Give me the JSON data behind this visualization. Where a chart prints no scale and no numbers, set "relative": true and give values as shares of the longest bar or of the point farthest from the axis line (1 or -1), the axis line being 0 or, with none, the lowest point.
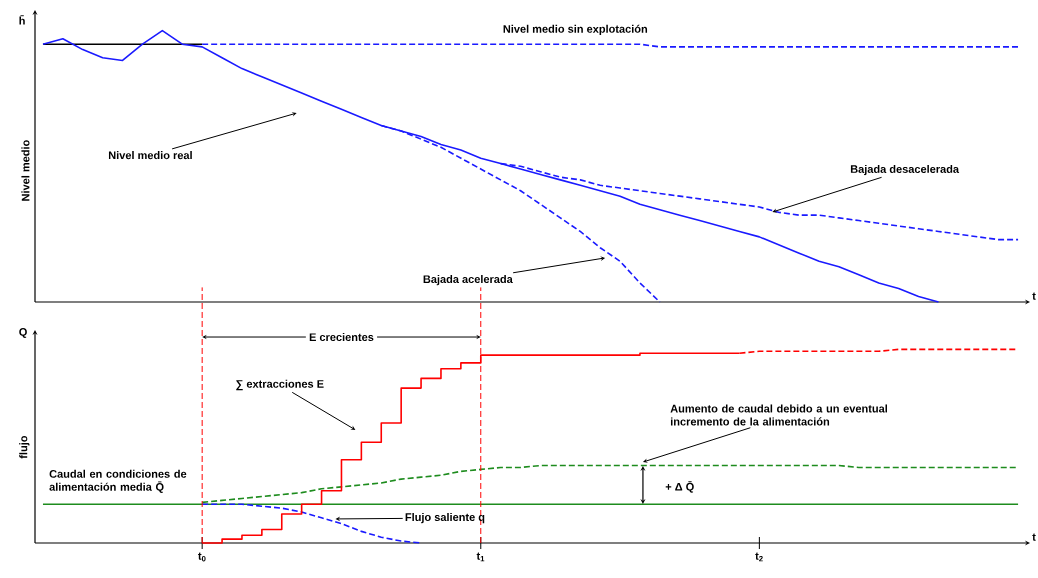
{
  "chart_data": [
    {
      "type": "line",
      "relative": true,
      "xlabel": "t",
      "ylabel": "Nivel medio",
      "categories": [
        null,
        null,
        null,
        null,
        null,
        null,
        null,
        null,
        null,
        null,
        null,
        null,
        null,
        null,
        null,
        null,
        null,
        null,
        null,
        null,
        null,
        null,
        null,
        null,
        null,
        null,
        null,
        null,
        null,
        null,
        null,
        null,
        null,
        null,
        null,
        null,
        null,
        null,
        null,
        null,
        null,
        null,
        null,
        null,
        null,
        null,
        null,
        null,
        null,
        null
      ],
      "series": [
        {
          "color": "#000000",
          "line_style": "solid",
          "values": [
            0.95,
            0.95,
            0.95,
            0.95,
            0.95,
            0.95,
            0.95,
            0.95,
            0.95,
            null,
            null,
            null,
            null,
            null,
            null,
            null,
            null,
            null,
            null,
            null,
            null,
            null,
            null,
            null,
            null,
            null,
            null,
            null,
            null,
            null,
            null,
            null,
            null,
            null,
            null,
            null,
            null,
            null,
            null,
            null,
            null,
            null,
            null,
            null,
            null,
            null,
            null,
            null,
            null,
            null
          ]
        },
        {
          "color": "#1a1aff",
          "line_style": "dashed",
          "values": [
            null,
            null,
            null,
            null,
            null,
            null,
            null,
            null,
            0.95,
            0.95,
            0.95,
            0.95,
            0.95,
            0.95,
            0.95,
            0.95,
            0.95,
            0.95,
            0.95,
            0.95,
            0.95,
            0.95,
            0.95,
            0.95,
            0.95,
            0.95,
            0.95,
            0.95,
            0.95,
            0.95,
            0.95,
            0.94,
            0.94,
            0.94,
            0.94,
            0.94,
            0.94,
            0.94,
            0.94,
            0.94,
            0.94,
            0.94,
            0.94,
            0.94,
            0.94,
            0.94,
            0.94,
            0.94,
            0.94,
            0.94
          ]
        },
        {
          "color": "#1a1aff",
          "line_style": "solid",
          "values": [
            0.95,
            0.97,
            0.93,
            0.9,
            0.89,
            0.95,
            1,
            0.95,
            0.94,
            0.9,
            0.86,
            0.83,
            0.8,
            0.77,
            0.74,
            0.71,
            0.68,
            0.65,
            0.63,
            0.61,
            0.58,
            0.56,
            0.53,
            0.51,
            0.49,
            0.47,
            0.45,
            0.43,
            0.41,
            0.39,
            0.36,
            0.34,
            0.32,
            0.3,
            0.28,
            0.26,
            0.24,
            0.21,
            0.18,
            0.15,
            0.13,
            0.1,
            0.07,
            0.05,
            0.02,
            0,
            null,
            null,
            null,
            null
          ]
        },
        {
          "color": "#1a1aff",
          "line_style": "dashed",
          "values": [
            null,
            null,
            null,
            null,
            null,
            null,
            null,
            null,
            null,
            null,
            null,
            null,
            null,
            null,
            null,
            null,
            null,
            null,
            null,
            null,
            null,
            null,
            null,
            0.51,
            0.5,
            0.48,
            0.46,
            0.45,
            0.43,
            0.42,
            0.41,
            0.4,
            0.39,
            0.38,
            0.37,
            0.36,
            0.35,
            0.33,
            0.32,
            0.32,
            0.31,
            0.3,
            0.29,
            0.28,
            0.27,
            0.26,
            0.25,
            0.24,
            0.23,
            0.23
          ]
        },
        {
          "color": "#1a1aff",
          "line_style": "dashed",
          "values": [
            null,
            null,
            null,
            null,
            null,
            null,
            null,
            null,
            null,
            null,
            null,
            null,
            null,
            null,
            null,
            null,
            null,
            0.65,
            0.63,
            0.6,
            0.57,
            0.53,
            0.49,
            0.45,
            0.41,
            0.36,
            0.31,
            0.26,
            0.2,
            0.15,
            0.07,
            0,
            null,
            null,
            null,
            null,
            null,
            null,
            null,
            null,
            null,
            null,
            null,
            null,
            null,
            null,
            null,
            null,
            null,
            null
          ]
        }
      ],
      "annotations": [
        "h̄",
        "Nivel medio sin explotación",
        "Nivel medio real",
        "Bajada desacelerada",
        "Bajada acelerada"
      ]
    },
    {
      "type": "line",
      "relative": true,
      "xlabel": "t",
      "ylabel": "flujo",
      "categories": [
        null,
        null,
        null,
        null,
        null,
        null,
        null,
        null,
        "t$_{0}$",
        null,
        null,
        null,
        null,
        null,
        null,
        null,
        null,
        null,
        null,
        null,
        null,
        null,
        "t$_{1}$",
        null,
        null,
        null,
        null,
        null,
        null,
        null,
        null,
        null,
        null,
        null,
        null,
        null,
        "t$_{2}$",
        null,
        null,
        null,
        null,
        null,
        null,
        null,
        null,
        null,
        null,
        null,
        null,
        null
      ],
      "series": [
        {
          "color": "#1e8c1e",
          "line_style": "solid",
          "values": [
            0.2,
            0.2,
            0.2,
            0.2,
            0.2,
            0.2,
            0.2,
            0.2,
            0.2,
            0.2,
            0.2,
            0.2,
            0.2,
            0.2,
            0.2,
            0.2,
            0.2,
            0.2,
            0.2,
            0.2,
            0.2,
            0.2,
            0.2,
            0.2,
            0.2,
            0.2,
            0.2,
            0.2,
            0.2,
            0.2,
            0.2,
            0.2,
            0.2,
            0.2,
            0.2,
            0.2,
            0.2,
            0.2,
            0.2,
            0.2,
            0.2,
            0.2,
            0.2,
            0.2,
            0.2,
            0.2,
            0.2,
            0.2,
            0.2,
            0.2
          ]
        },
        {
          "color": "#1e8c1e",
          "line_style": "dashed",
          "values": [
            null,
            null,
            null,
            null,
            null,
            null,
            null,
            null,
            0.21,
            0.22,
            0.23,
            0.24,
            0.25,
            0.26,
            0.28,
            0.29,
            0.3,
            0.31,
            0.33,
            0.34,
            0.35,
            0.37,
            0.38,
            0.39,
            0.39,
            0.4,
            0.4,
            0.4,
            0.4,
            0.4,
            0.4,
            0.4,
            0.4,
            0.4,
            0.4,
            0.4,
            0.4,
            0.4,
            0.4,
            0.4,
            0.4,
            0.39,
            0.39,
            0.39,
            0.39,
            0.39,
            0.39,
            0.39,
            0.39,
            0.39
          ]
        },
        {
          "color": "#1a1aff",
          "line_style": "dashed",
          "values": [
            null,
            null,
            null,
            null,
            null,
            null,
            null,
            null,
            0.2,
            0.2,
            0.2,
            0.19,
            0.18,
            0.16,
            0.13,
            0.1,
            0.06,
            0.03,
            0.01,
            0,
            null,
            null,
            null,
            null,
            null,
            null,
            null,
            null,
            null,
            null,
            null,
            null,
            null,
            null,
            null,
            null,
            null,
            null,
            null,
            null,
            null,
            null,
            null,
            null,
            null,
            null,
            null,
            null,
            null,
            null
          ]
        },
        {
          "type": "step",
          "color": "#ff0000",
          "line_style": "solid",
          "values": [
            null,
            null,
            null,
            null,
            null,
            null,
            null,
            null,
            0,
            0.02,
            0.04,
            0.07,
            0.15,
            0.2,
            0.27,
            0.43,
            0.52,
            0.62,
            0.8,
            0.85,
            0.9,
            0.93,
            0.97,
            0.97,
            0.97,
            0.97,
            0.97,
            0.97,
            0.97,
            0.97,
            0.98,
            0.98,
            0.98,
            0.98,
            0.98,
            0.98,
            null,
            null,
            null,
            null,
            null,
            null,
            null,
            null,
            null,
            null,
            null,
            null,
            null,
            null
          ]
        },
        {
          "color": "#ff0000",
          "line_style": "dashed",
          "values": [
            null,
            null,
            null,
            null,
            null,
            null,
            null,
            null,
            null,
            null,
            null,
            null,
            null,
            null,
            null,
            null,
            null,
            null,
            null,
            null,
            null,
            null,
            null,
            null,
            null,
            null,
            null,
            null,
            null,
            null,
            null,
            null,
            null,
            null,
            null,
            0.98,
            0.99,
            0.99,
            0.99,
            0.99,
            0.99,
            0.99,
            0.99,
            1,
            1,
            1,
            1,
            1,
            1,
            1
          ]
        }
      ],
      "ref_lines": [
        {
          "axis": "x",
          "value": "t$_{0}$",
          "color": "#ff0000",
          "line_style": "dashed"
        },
        {
          "axis": "x",
          "value": "t$_{1}$",
          "color": "#ff0000",
          "line_style": "dashed"
        }
      ],
      "annotations": [
        "Q",
        "E crecientes",
        "∑ extracciones E",
        "Flujo saliente q",
        "Aumento de caudal debido a un eventual incremento de la alimentación",
        "Caudal en condiciones de alimentación media Q̄",
        "+ Δ Q̄"
      ]
    }
  ]
}
